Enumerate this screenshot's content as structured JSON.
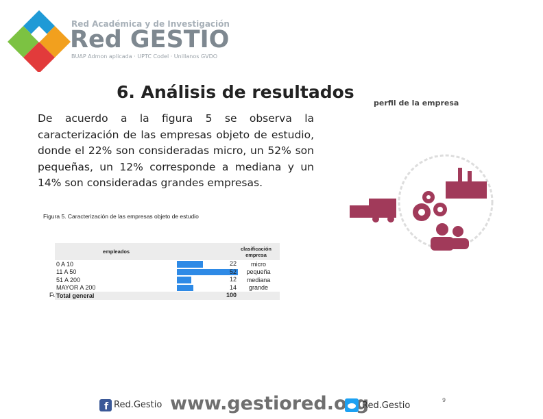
{
  "header": {
    "network": "Red Académica y de Investigación",
    "brand": "Red GESTIO",
    "members": "BUAP Admon aplicada · UPTC Codel · Unillanos GVDO"
  },
  "slide": {
    "title": "6. Análisis de resultados",
    "side_label": "perfil de la empresa",
    "paragraph": "De acuerdo a la figura 5 se observa la caracterización de las empresas objeto de estudio, donde el 22% son consideradas micro, un 52% son pequeñas, un 12% corresponde a mediana y un 14% son consideradas grandes empresas.",
    "caption": "Figura 5. Caracterización de las empresas objeto de estudio",
    "fragment": "Fu"
  },
  "table": {
    "headers": [
      "empleados",
      "clasificación empresa"
    ],
    "rows": [
      [
        "0 A 10",
        22,
        "micro"
      ],
      [
        "11 A 50",
        52,
        "pequeña"
      ],
      [
        "51 A 200",
        12,
        "mediana"
      ],
      [
        "MAYOR A 200",
        14,
        "grande"
      ]
    ],
    "total": [
      "Total general",
      100
    ]
  },
  "footer": {
    "facebook": "Red.Gestio",
    "url": "www.gestiored.org",
    "twitter": "Red.Gestio",
    "page": 9
  }
}
